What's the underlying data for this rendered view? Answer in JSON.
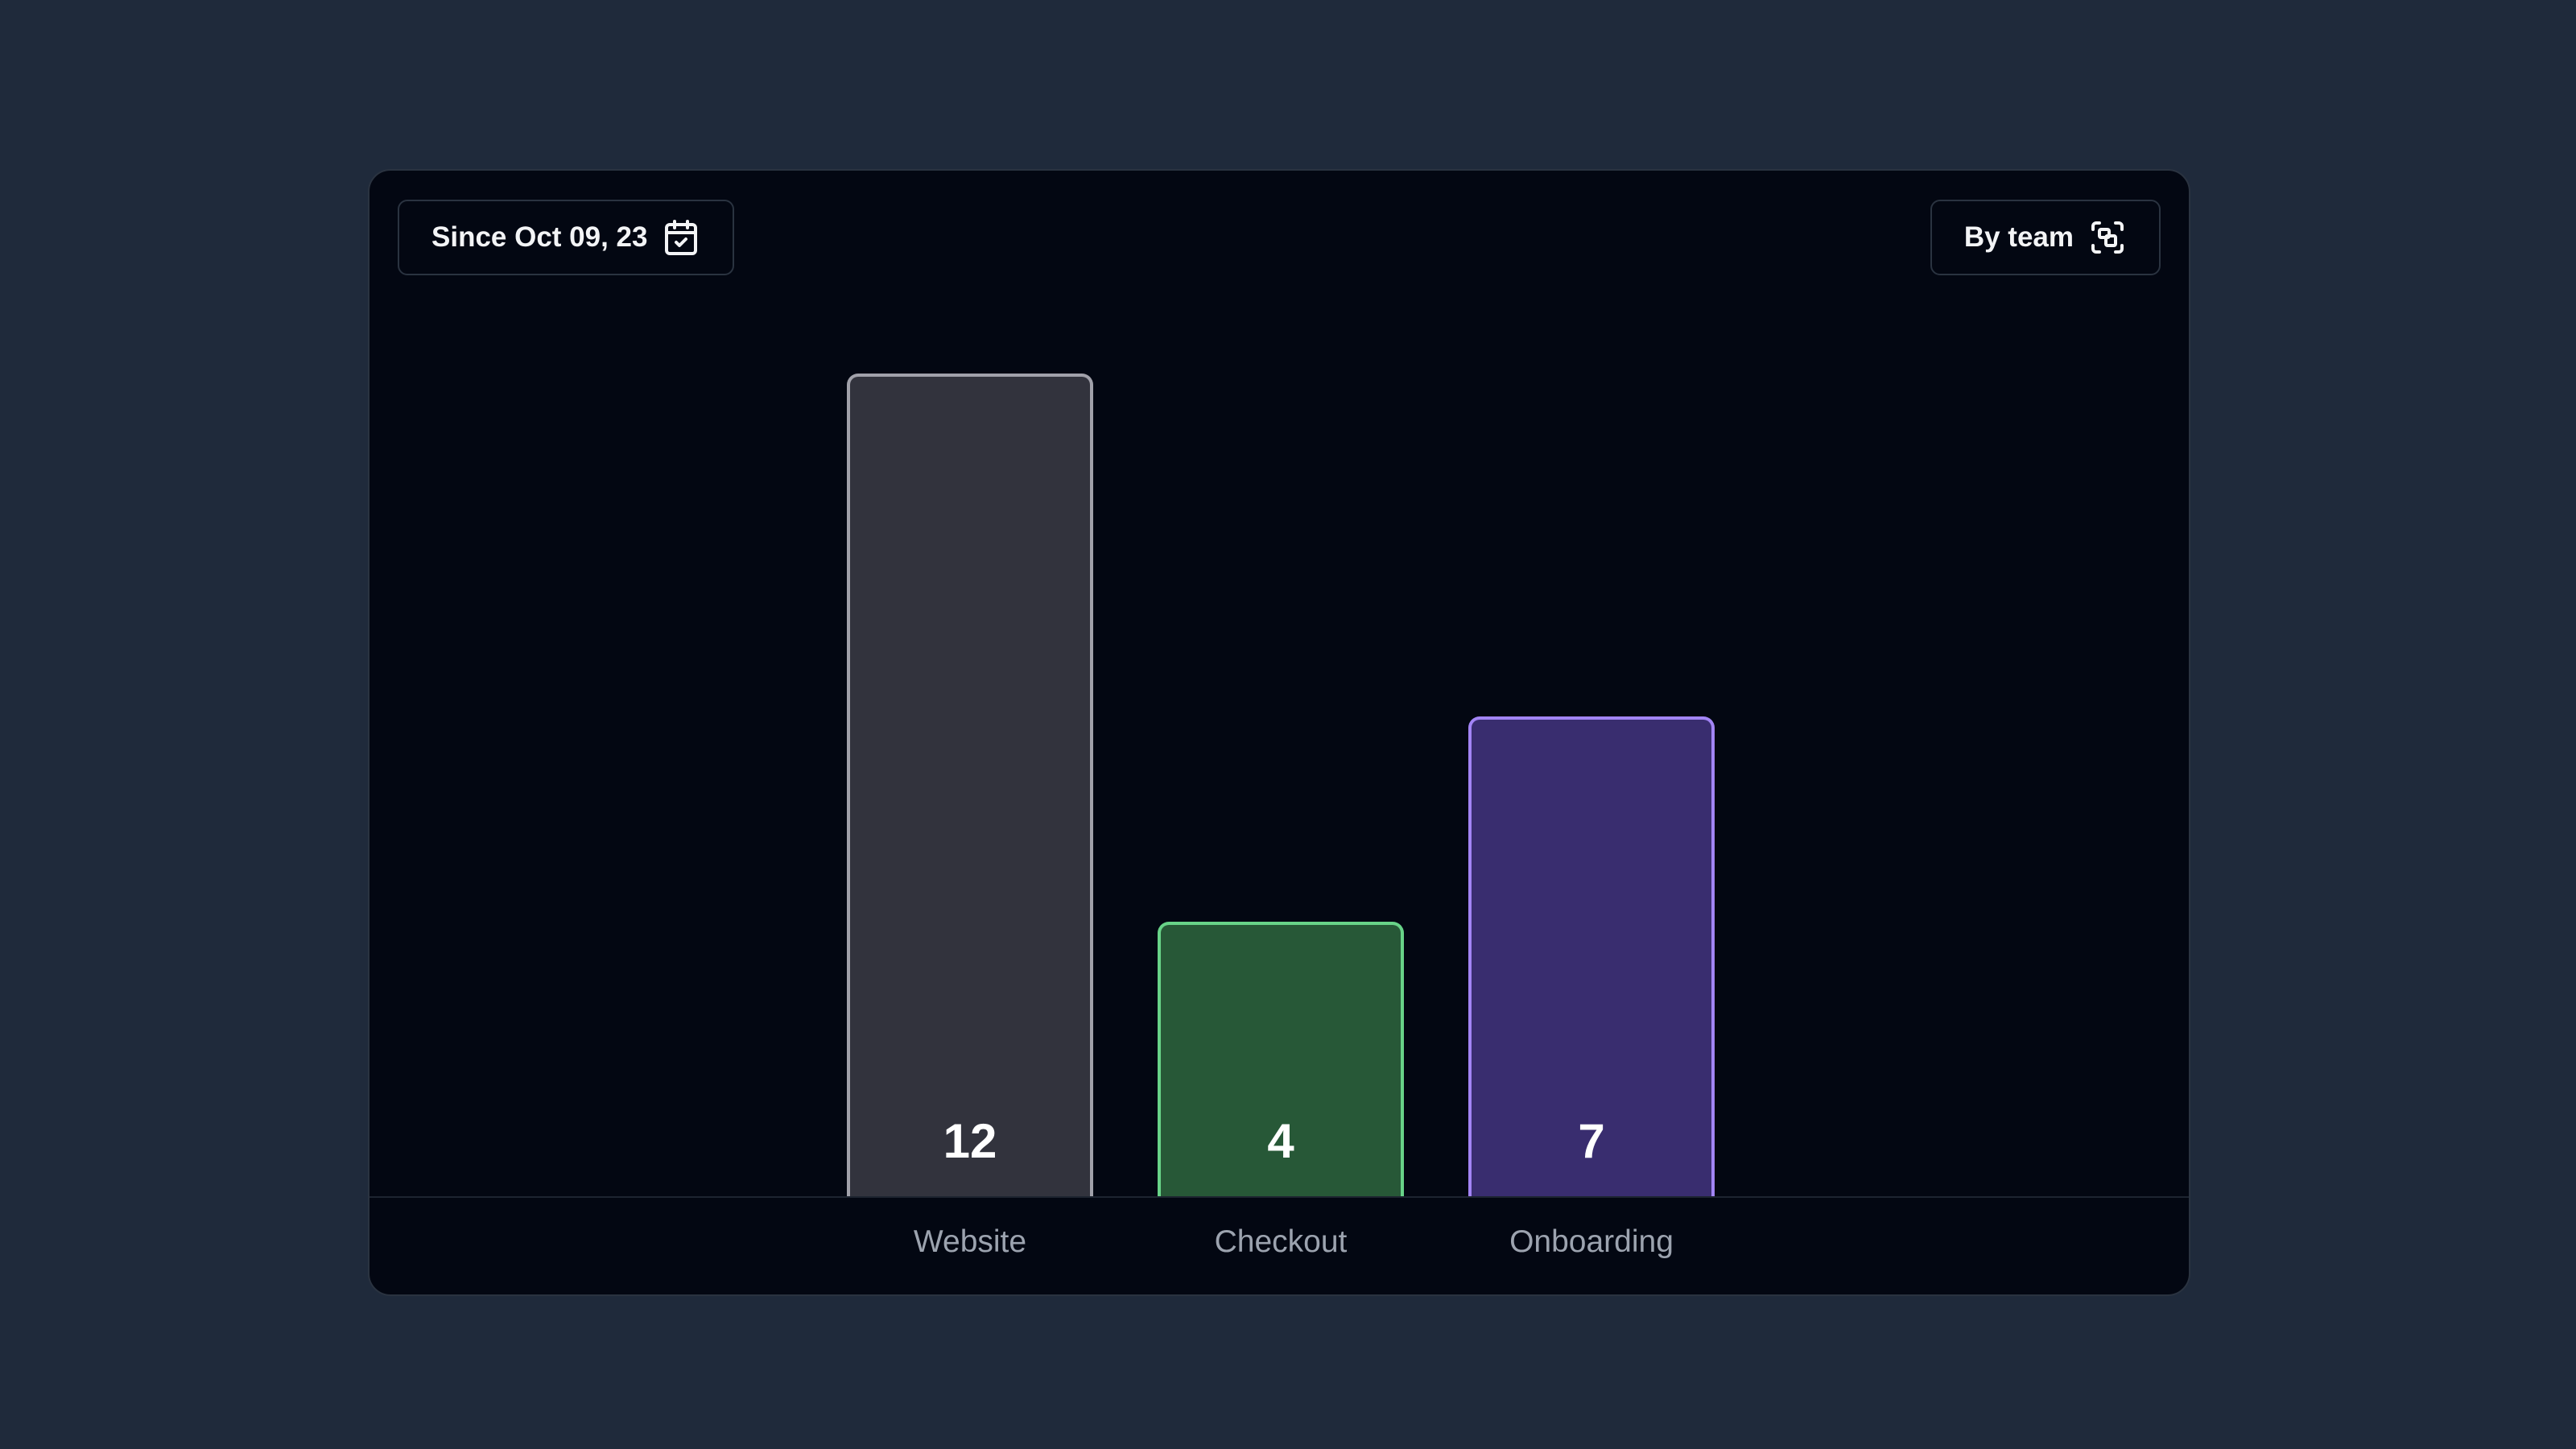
{
  "filters": {
    "date_label": "Since Oct 09, 23",
    "date_icon": "calendar-check-icon",
    "group_label": "By team",
    "group_icon": "scan-group-icon"
  },
  "chart_data": {
    "type": "bar",
    "categories": [
      "Website",
      "Checkout",
      "Onboarding"
    ],
    "values": [
      12,
      4,
      7
    ],
    "ylim": [
      0,
      12
    ],
    "grid": false,
    "colors": {
      "fills": [
        "#32333d",
        "#275837",
        "#392d6f"
      ],
      "borders": [
        "#a1a1aa",
        "#68d388",
        "#a284f5"
      ]
    }
  }
}
